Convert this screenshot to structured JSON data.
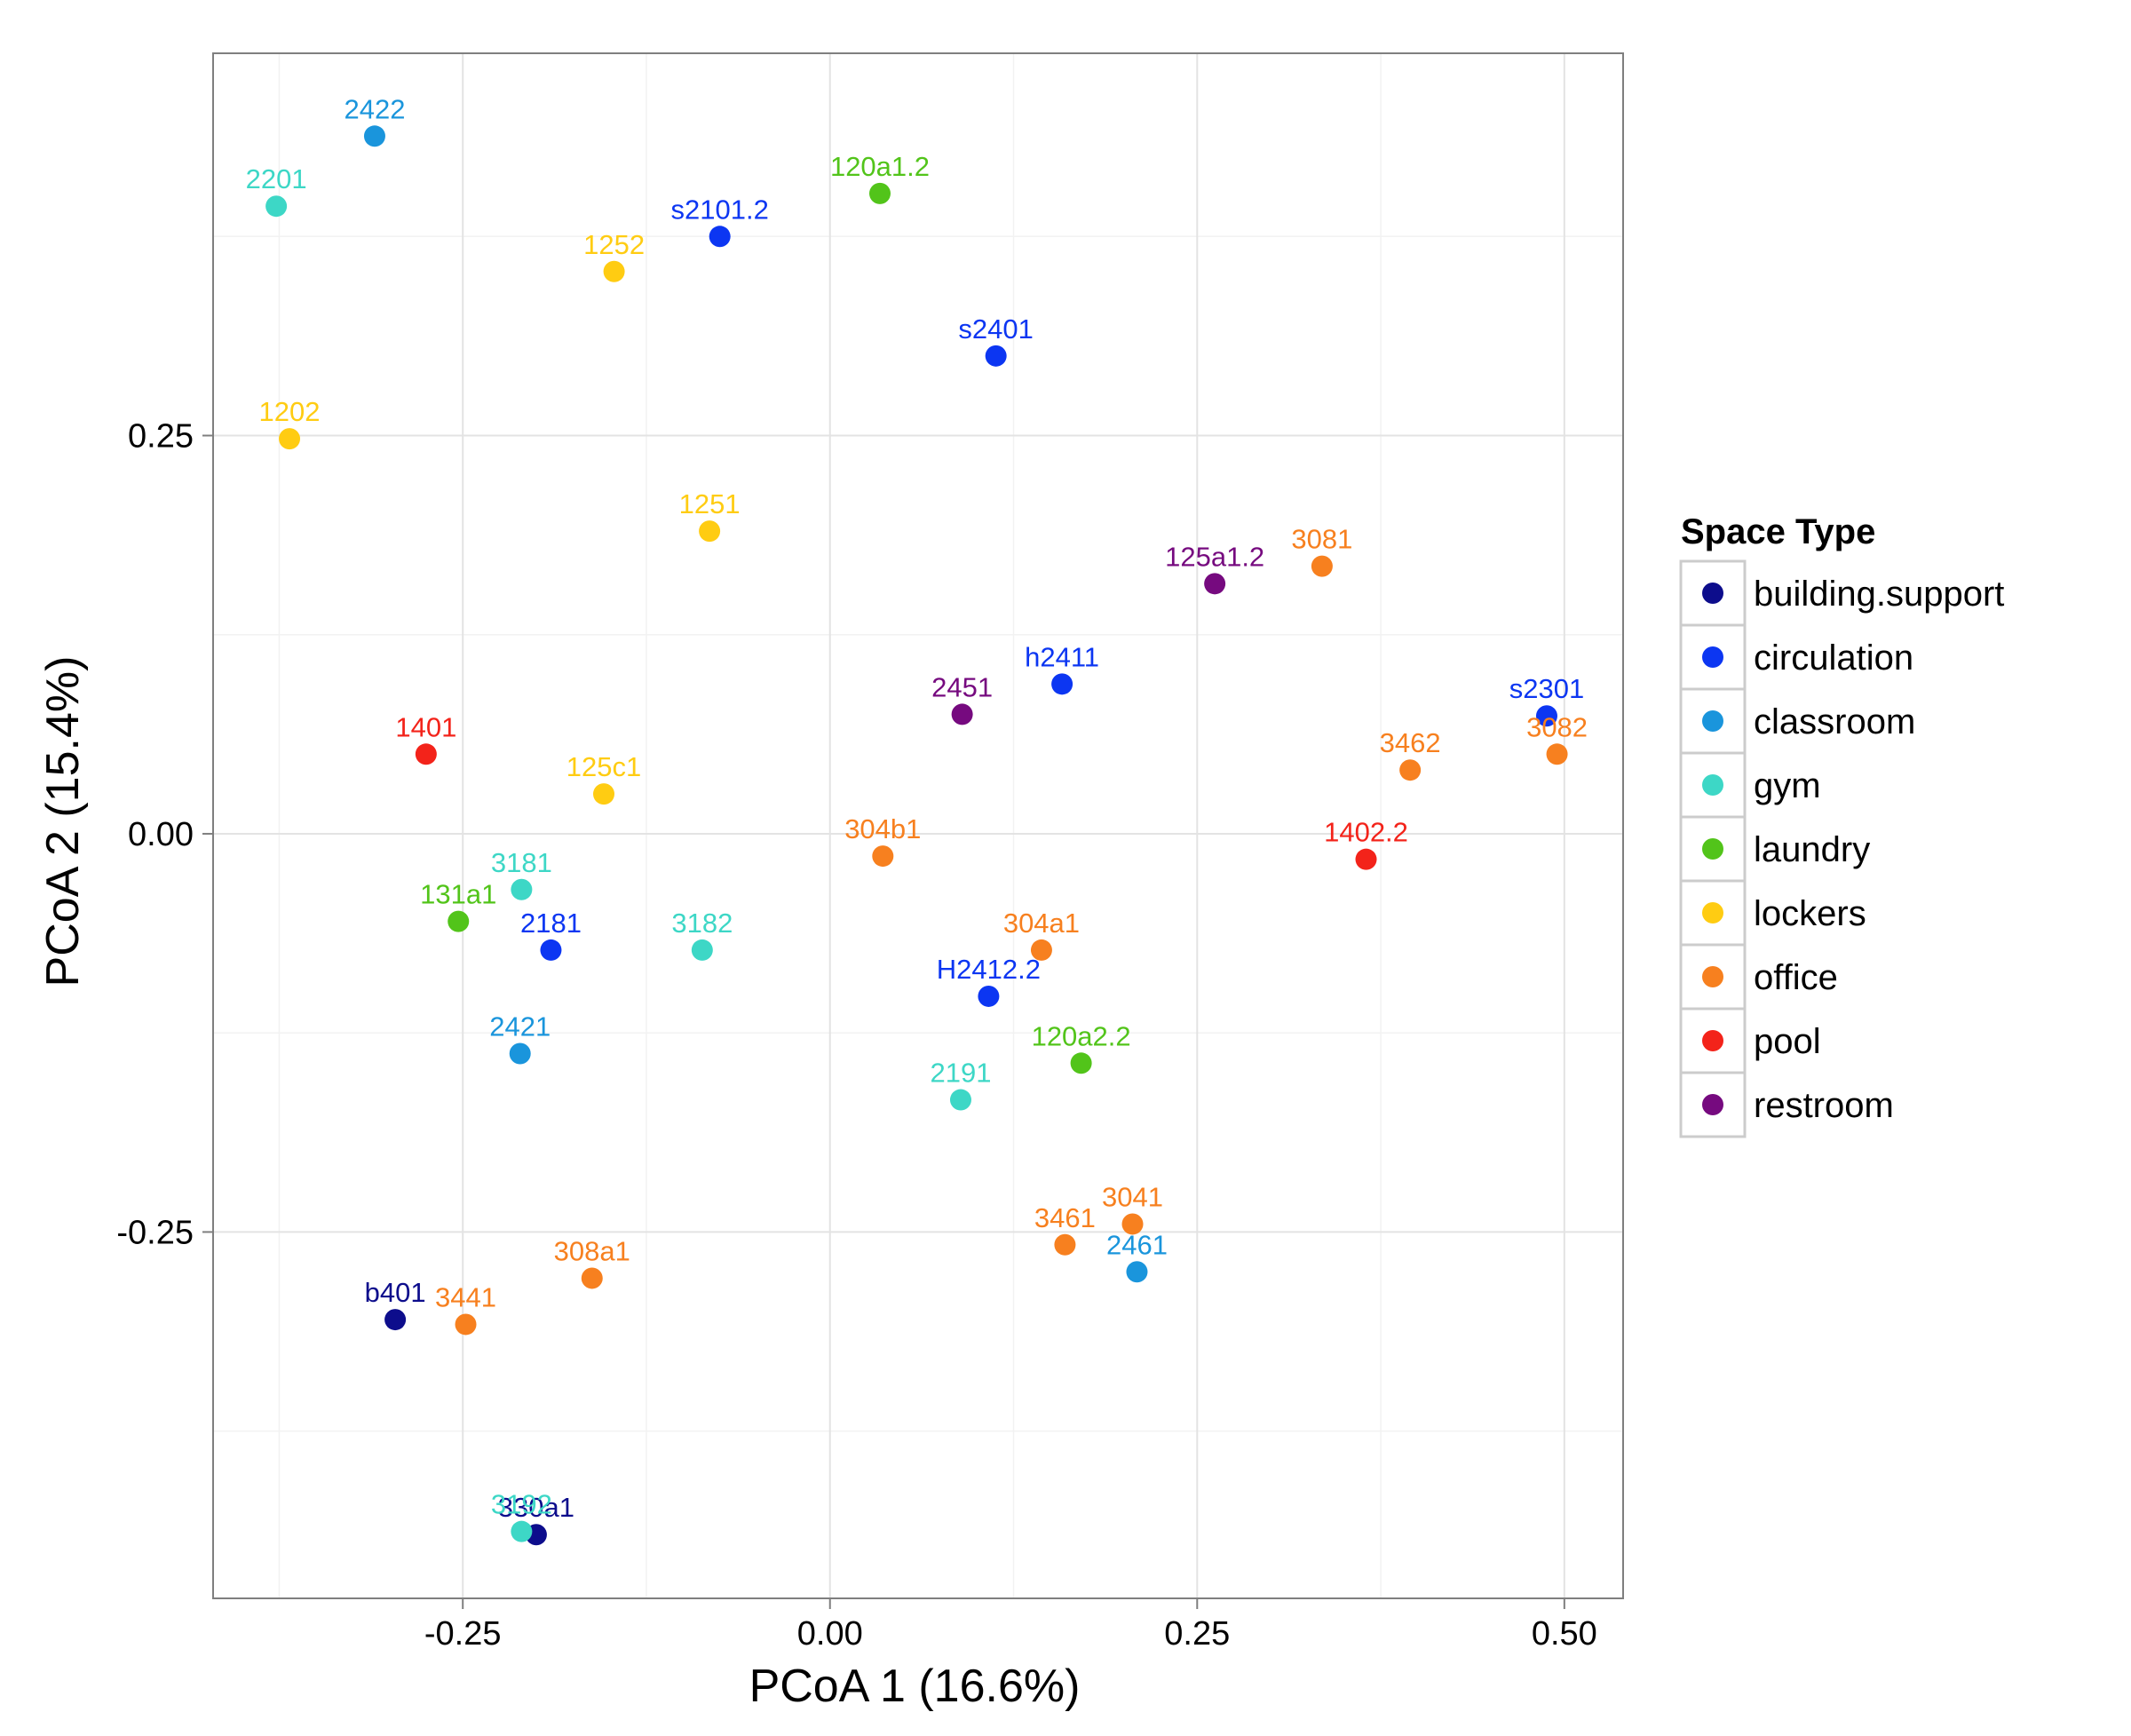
{
  "chart_data": {
    "type": "scatter",
    "title": "",
    "xlabel": "PCoA 1 (16.6%)",
    "ylabel": "PCoA 2 (15.4%)",
    "xlim": [
      -0.42,
      0.54
    ],
    "ylim": [
      -0.48,
      0.49
    ],
    "xticks": [
      -0.25,
      0.0,
      0.25,
      0.5
    ],
    "xtick_labels": [
      "-0.25",
      "0.00",
      "0.25",
      "0.50"
    ],
    "yticks": [
      -0.25,
      0.0,
      0.25
    ],
    "ytick_labels": [
      "-0.25",
      "0.00",
      "0.25"
    ],
    "grid": true,
    "legend_title": "Space Type",
    "legend_position": "right",
    "series": [
      {
        "name": "building.support",
        "color": "#0D0D8C",
        "points": [
          {
            "label": "b401",
            "x": -0.296,
            "y": -0.305
          },
          {
            "label": "330a1",
            "x": -0.2,
            "y": -0.44
          }
        ]
      },
      {
        "name": "circulation",
        "color": "#0C36F2",
        "points": [
          {
            "label": "s2101.2",
            "x": -0.075,
            "y": 0.375
          },
          {
            "label": "s2401",
            "x": 0.113,
            "y": 0.3
          },
          {
            "label": "h2411",
            "x": 0.158,
            "y": 0.094
          },
          {
            "label": "s2301",
            "x": 0.488,
            "y": 0.074
          },
          {
            "label": "2181",
            "x": -0.19,
            "y": -0.073
          },
          {
            "label": "H2412.2",
            "x": 0.108,
            "y": -0.102
          }
        ]
      },
      {
        "name": "classroom",
        "color": "#1A95DC",
        "points": [
          {
            "label": "2422",
            "x": -0.31,
            "y": 0.438
          },
          {
            "label": "2421",
            "x": -0.211,
            "y": -0.138
          },
          {
            "label": "2461",
            "x": 0.209,
            "y": -0.275
          }
        ]
      },
      {
        "name": "gym",
        "color": "#3DD7C6",
        "points": [
          {
            "label": "2201",
            "x": -0.377,
            "y": 0.394
          },
          {
            "label": "3181",
            "x": -0.21,
            "y": -0.035
          },
          {
            "label": "3182",
            "x": -0.087,
            "y": -0.073
          },
          {
            "label": "2191",
            "x": 0.089,
            "y": -0.167
          },
          {
            "label": "3192",
            "x": -0.21,
            "y": -0.438
          }
        ]
      },
      {
        "name": "laundry",
        "color": "#52C41A",
        "points": [
          {
            "label": "120a1.2",
            "x": 0.034,
            "y": 0.402
          },
          {
            "label": "131a1",
            "x": -0.253,
            "y": -0.055
          },
          {
            "label": "120a2.2",
            "x": 0.171,
            "y": -0.144
          }
        ]
      },
      {
        "name": "lockers",
        "color": "#FFCC12",
        "points": [
          {
            "label": "1252",
            "x": -0.147,
            "y": 0.353
          },
          {
            "label": "1202",
            "x": -0.368,
            "y": 0.248
          },
          {
            "label": "1251",
            "x": -0.082,
            "y": 0.19
          },
          {
            "label": "125c1",
            "x": -0.154,
            "y": 0.025
          }
        ]
      },
      {
        "name": "office",
        "color": "#F7801F",
        "points": [
          {
            "label": "3081",
            "x": 0.335,
            "y": 0.168
          },
          {
            "label": "3462",
            "x": 0.395,
            "y": 0.04
          },
          {
            "label": "3082",
            "x": 0.495,
            "y": 0.05
          },
          {
            "label": "304b1",
            "x": 0.036,
            "y": -0.014
          },
          {
            "label": "304a1",
            "x": 0.144,
            "y": -0.073
          },
          {
            "label": "3041",
            "x": 0.206,
            "y": -0.245
          },
          {
            "label": "3461",
            "x": 0.16,
            "y": -0.258
          },
          {
            "label": "308a1",
            "x": -0.162,
            "y": -0.279
          },
          {
            "label": "3441",
            "x": -0.248,
            "y": -0.308
          }
        ]
      },
      {
        "name": "pool",
        "color": "#F3231A",
        "points": [
          {
            "label": "1401",
            "x": -0.275,
            "y": 0.05
          },
          {
            "label": "1402.2",
            "x": 0.365,
            "y": -0.016
          }
        ]
      },
      {
        "name": "restroom",
        "color": "#760A7F",
        "points": [
          {
            "label": "125a1.2",
            "x": 0.262,
            "y": 0.157
          },
          {
            "label": "2451",
            "x": 0.09,
            "y": 0.075
          }
        ]
      }
    ]
  }
}
